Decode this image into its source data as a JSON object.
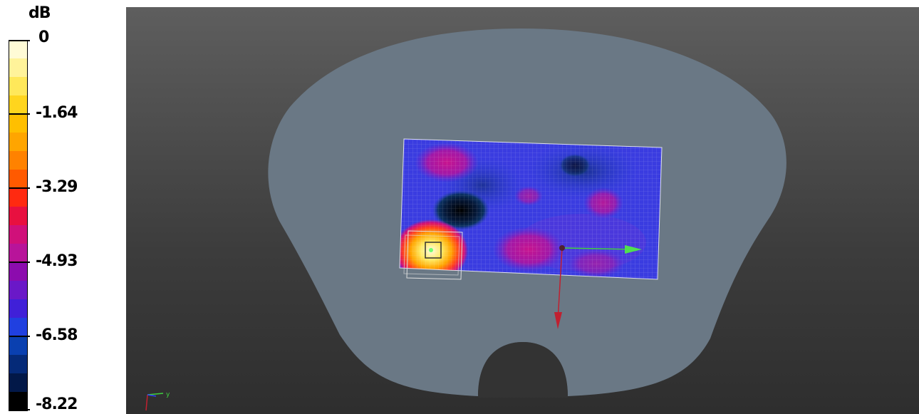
{
  "legend": {
    "unit": "dB",
    "ticks": [
      {
        "label": "0",
        "value": 0
      },
      {
        "label": "-1.64",
        "value": -1.64
      },
      {
        "label": "-3.29",
        "value": -3.29
      },
      {
        "label": "-4.93",
        "value": -4.93
      },
      {
        "label": "-6.58",
        "value": -6.58
      },
      {
        "label": "-8.22",
        "value": -8.22
      }
    ],
    "colors": [
      "#fffbd6",
      "#fff39a",
      "#ffe85a",
      "#ffd51e",
      "#ffbf00",
      "#ffa500",
      "#ff8200",
      "#ff5a00",
      "#ff2a10",
      "#e81040",
      "#d0107a",
      "#b8149a",
      "#8c0cae",
      "#6a18c8",
      "#4020d8",
      "#2040e0",
      "#0a40b0",
      "#052a78",
      "#021848",
      "#000000"
    ]
  },
  "viewport": {
    "background": "#4a4a4a",
    "phantom_color": "#6a7885",
    "orientation_axes": {
      "y_label": "y"
    }
  }
}
